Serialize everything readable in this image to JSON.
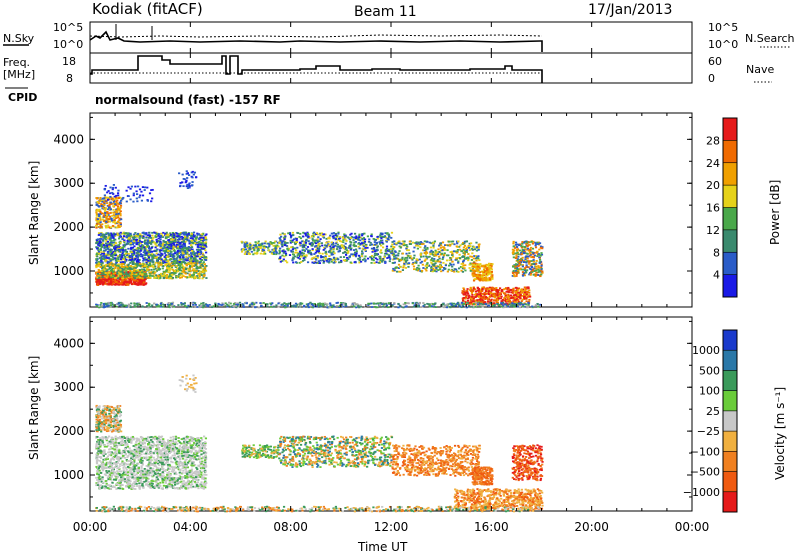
{
  "header": {
    "title": "Kodiak (fitACF)",
    "beam": "Beam 11",
    "date": "17/Jan/2013"
  },
  "noise_panel": {
    "left_label": "N.Sky",
    "left_ticks": [
      "10^5",
      "10^0"
    ],
    "right_ticks": [
      "10^5",
      "10^0"
    ],
    "right_label": "N.Search"
  },
  "freq_panel": {
    "left_label_1": "Freq.",
    "left_label_2": "[MHz]",
    "left_ticks": [
      "18",
      "8"
    ],
    "right_ticks": [
      "60",
      "0"
    ],
    "right_label": "Nave",
    "cpid_label": "CPID",
    "cpid_text": "normalsound (fast) -157 RF"
  },
  "chart_data": [
    {
      "type": "heatmap",
      "title": "",
      "ylabel": "Slant Range [km]",
      "xlabel": "",
      "xlim": [
        "00:00",
        "24:00"
      ],
      "ylim": [
        180,
        4600
      ],
      "yticks": [
        "1000",
        "2000",
        "3000",
        "4000"
      ],
      "colorbar": {
        "label": "Power [dB]",
        "ticks": [
          "4",
          "8",
          "12",
          "16",
          "20",
          "24",
          "28"
        ],
        "colors": [
          "#1a1ae6",
          "#2a5cc8",
          "#3a8a6e",
          "#4aa84a",
          "#e6d21a",
          "#f0a000",
          "#f06a00",
          "#e61a1a"
        ]
      },
      "data_extent_hours": [
        0,
        18
      ],
      "regions": [
        {
          "t": [
            0.2,
            4.5
          ],
          "range_km": [
            600,
            2800
          ],
          "level_db": "mixed 4-28"
        },
        {
          "t": [
            6.0,
            15.5
          ],
          "range_km": [
            1000,
            1900
          ],
          "level_db": "mixed 4-16"
        },
        {
          "t": [
            15.0,
            18.0
          ],
          "range_km": [
            250,
            1700
          ],
          "level_db": "up to 28"
        }
      ]
    },
    {
      "type": "heatmap",
      "title": "",
      "ylabel": "Slant Range [km]",
      "xlabel": "Time UT",
      "xlim": [
        "00:00",
        "24:00"
      ],
      "ylim": [
        180,
        4600
      ],
      "xticks": [
        "00:00",
        "04:00",
        "08:00",
        "12:00",
        "16:00",
        "20:00",
        "00:00"
      ],
      "yticks": [
        "1000",
        "2000",
        "3000",
        "4000"
      ],
      "colorbar": {
        "label": "Velocity [m s⁻¹]",
        "ticks": [
          "1000",
          "500",
          "100",
          "25",
          "−25",
          "−100",
          "−500",
          "−1000"
        ],
        "colors": [
          "#1a3acc",
          "#2a78a8",
          "#3a9a5a",
          "#6acc3a",
          "#c8c8c8",
          "#f0b040",
          "#f08020",
          "#f05a10",
          "#e61a1a"
        ]
      },
      "data_extent_hours": [
        0,
        18
      ],
      "regions": [
        {
          "t": [
            0.2,
            4.5
          ],
          "range_km": [
            600,
            2700
          ],
          "velocity": "mostly ±25 grey, mixed green"
        },
        {
          "t": [
            6.0,
            12.0
          ],
          "range_km": [
            1000,
            1900
          ],
          "velocity": "green/orange mixed"
        },
        {
          "t": [
            12.0,
            18.0
          ],
          "range_km": [
            250,
            1900
          ],
          "velocity": "negative (orange)"
        }
      ]
    }
  ]
}
